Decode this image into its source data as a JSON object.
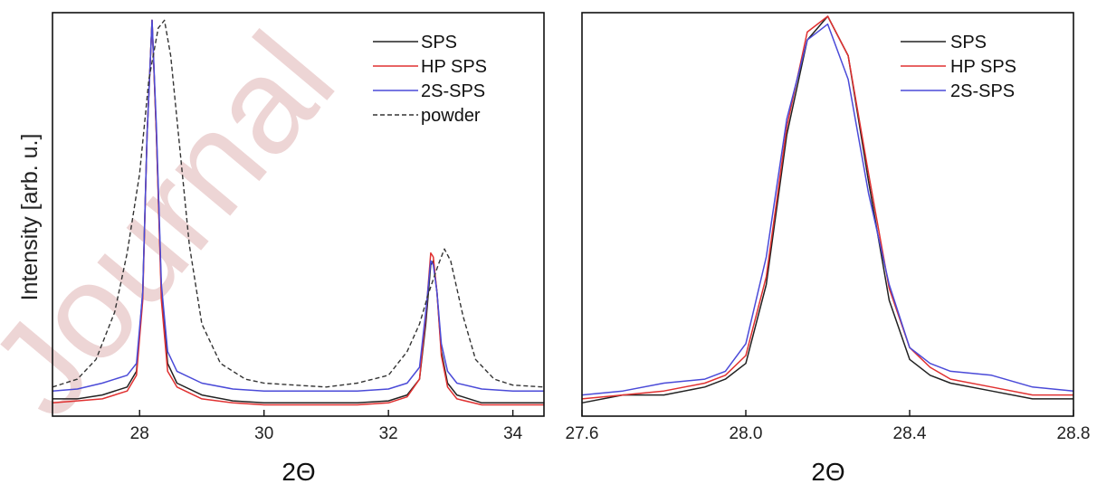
{
  "watermark": "Journal",
  "chart_data": [
    {
      "type": "line",
      "xlabel": "2Θ",
      "ylabel": "Intensity [arb. u.]",
      "xlim": [
        26.6,
        34.5
      ],
      "ylim": [
        0,
        1.0
      ],
      "xticks": [
        28,
        30,
        32,
        34
      ],
      "yticks_shown": false,
      "legend_position": "top-right",
      "series": [
        {
          "name": "SPS",
          "color": "#222222",
          "dash": "solid",
          "x": [
            26.6,
            27.0,
            27.4,
            27.8,
            27.95,
            28.05,
            28.12,
            28.2,
            28.27,
            28.35,
            28.45,
            28.6,
            29.0,
            29.5,
            30.0,
            30.5,
            31.0,
            31.5,
            32.0,
            32.3,
            32.5,
            32.6,
            32.68,
            32.72,
            32.78,
            32.85,
            32.95,
            33.1,
            33.5,
            34.0,
            34.5
          ],
          "y": [
            0.03,
            0.03,
            0.04,
            0.06,
            0.1,
            0.3,
            0.7,
            0.99,
            0.7,
            0.3,
            0.12,
            0.07,
            0.04,
            0.025,
            0.02,
            0.02,
            0.02,
            0.02,
            0.025,
            0.04,
            0.08,
            0.22,
            0.37,
            0.38,
            0.3,
            0.15,
            0.07,
            0.04,
            0.02,
            0.02,
            0.02
          ]
        },
        {
          "name": "HP SPS",
          "color": "#e03030",
          "dash": "solid",
          "x": [
            26.6,
            27.0,
            27.4,
            27.8,
            27.95,
            28.05,
            28.12,
            28.2,
            28.27,
            28.35,
            28.45,
            28.6,
            29.0,
            29.5,
            30.0,
            30.5,
            31.0,
            31.5,
            32.0,
            32.3,
            32.5,
            32.6,
            32.68,
            32.72,
            32.78,
            32.85,
            32.95,
            33.1,
            33.5,
            34.0,
            34.5
          ],
          "y": [
            0.02,
            0.025,
            0.03,
            0.05,
            0.09,
            0.28,
            0.7,
            0.99,
            0.7,
            0.28,
            0.1,
            0.06,
            0.03,
            0.02,
            0.015,
            0.015,
            0.015,
            0.015,
            0.02,
            0.035,
            0.08,
            0.24,
            0.4,
            0.39,
            0.3,
            0.14,
            0.06,
            0.03,
            0.015,
            0.015,
            0.015
          ]
        },
        {
          "name": "2S-SPS",
          "color": "#4a4ad8",
          "dash": "solid",
          "x": [
            26.6,
            27.0,
            27.4,
            27.8,
            27.95,
            28.05,
            28.12,
            28.2,
            28.27,
            28.35,
            28.45,
            28.6,
            29.0,
            29.5,
            30.0,
            30.5,
            31.0,
            31.5,
            32.0,
            32.3,
            32.5,
            32.6,
            32.68,
            32.72,
            32.78,
            32.85,
            32.95,
            33.1,
            33.5,
            34.0,
            34.5
          ],
          "y": [
            0.05,
            0.055,
            0.07,
            0.09,
            0.12,
            0.3,
            0.7,
            0.99,
            0.72,
            0.32,
            0.15,
            0.1,
            0.07,
            0.055,
            0.05,
            0.05,
            0.05,
            0.05,
            0.055,
            0.07,
            0.11,
            0.25,
            0.38,
            0.37,
            0.3,
            0.17,
            0.1,
            0.07,
            0.055,
            0.05,
            0.05
          ]
        },
        {
          "name": "powder",
          "color": "#333333",
          "dash": "dashed",
          "x": [
            26.6,
            27.0,
            27.3,
            27.6,
            27.8,
            28.0,
            28.15,
            28.3,
            28.4,
            28.5,
            28.65,
            28.8,
            29.0,
            29.3,
            29.7,
            30.0,
            30.5,
            31.0,
            31.5,
            32.0,
            32.3,
            32.5,
            32.65,
            32.8,
            32.9,
            33.0,
            33.2,
            33.4,
            33.7,
            34.0,
            34.5
          ],
          "y": [
            0.06,
            0.08,
            0.13,
            0.25,
            0.4,
            0.6,
            0.84,
            0.97,
            0.99,
            0.9,
            0.66,
            0.42,
            0.22,
            0.12,
            0.08,
            0.07,
            0.065,
            0.06,
            0.07,
            0.09,
            0.15,
            0.22,
            0.3,
            0.37,
            0.41,
            0.38,
            0.24,
            0.13,
            0.08,
            0.065,
            0.06
          ]
        }
      ]
    },
    {
      "type": "line",
      "xlabel": "2Θ",
      "ylabel": "",
      "xlim": [
        27.6,
        28.8
      ],
      "ylim": [
        0,
        1.0
      ],
      "xticks": [
        27.6,
        28.0,
        28.4,
        28.8
      ],
      "xtick_labels": [
        "27.6",
        "28.0",
        "28.4",
        "28.8"
      ],
      "yticks_shown": false,
      "legend_position": "top-right",
      "series": [
        {
          "name": "SPS",
          "color": "#222222",
          "dash": "solid",
          "x": [
            27.6,
            27.7,
            27.8,
            27.9,
            27.95,
            28.0,
            28.05,
            28.1,
            28.15,
            28.2,
            28.25,
            28.3,
            28.35,
            28.4,
            28.45,
            28.5,
            28.6,
            28.7,
            28.8
          ],
          "y": [
            0.02,
            0.04,
            0.04,
            0.06,
            0.08,
            0.12,
            0.32,
            0.7,
            0.94,
            1.0,
            0.9,
            0.58,
            0.28,
            0.13,
            0.09,
            0.07,
            0.05,
            0.03,
            0.03
          ]
        },
        {
          "name": "HP SPS",
          "color": "#e03030",
          "dash": "solid",
          "x": [
            27.6,
            27.7,
            27.8,
            27.9,
            27.95,
            28.0,
            28.05,
            28.1,
            28.15,
            28.2,
            28.25,
            28.3,
            28.35,
            28.4,
            28.45,
            28.5,
            28.6,
            28.7,
            28.8
          ],
          "y": [
            0.03,
            0.04,
            0.05,
            0.07,
            0.09,
            0.14,
            0.34,
            0.72,
            0.96,
            1.0,
            0.9,
            0.6,
            0.31,
            0.16,
            0.11,
            0.08,
            0.06,
            0.04,
            0.04
          ]
        },
        {
          "name": "2S-SPS",
          "color": "#4a4ad8",
          "dash": "solid",
          "x": [
            27.6,
            27.7,
            27.8,
            27.9,
            27.95,
            28.0,
            28.05,
            28.1,
            28.15,
            28.2,
            28.25,
            28.3,
            28.35,
            28.4,
            28.45,
            28.5,
            28.6,
            28.7,
            28.8
          ],
          "y": [
            0.04,
            0.05,
            0.07,
            0.08,
            0.1,
            0.17,
            0.39,
            0.74,
            0.94,
            0.98,
            0.84,
            0.55,
            0.32,
            0.16,
            0.12,
            0.1,
            0.09,
            0.06,
            0.05
          ]
        }
      ]
    }
  ]
}
